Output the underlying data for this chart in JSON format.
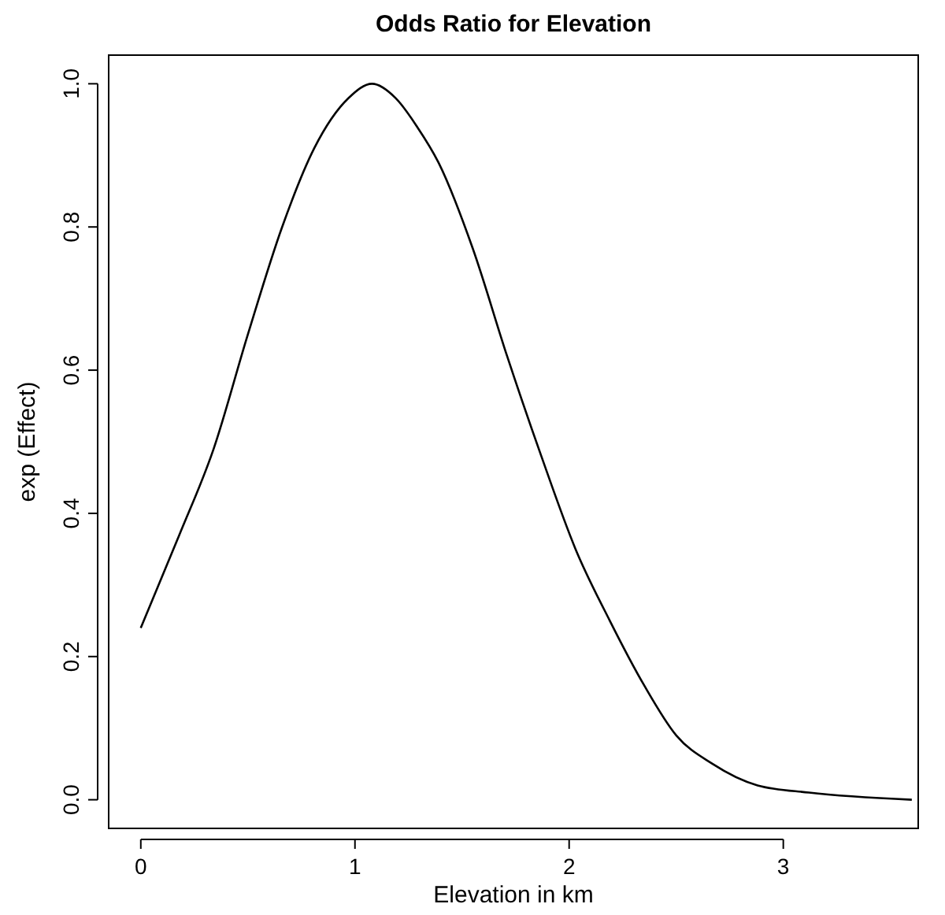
{
  "chart_data": {
    "type": "line",
    "title": "Odds Ratio for Elevation",
    "xlabel": "Elevation in km",
    "ylabel": "exp (Effect)",
    "xlim": [
      -0.15,
      3.63
    ],
    "ylim": [
      -0.04,
      1.04
    ],
    "xticks": [
      0,
      1,
      2,
      3
    ],
    "yticks": [
      {
        "value": 0,
        "label": "0.0"
      },
      {
        "value": 0.2,
        "label": "0.2"
      },
      {
        "value": 0.4,
        "label": "0.4"
      },
      {
        "value": 0.6,
        "label": "0.6"
      },
      {
        "value": 0.8,
        "label": "0.8"
      },
      {
        "value": 1,
        "label": "1.0"
      }
    ],
    "grid": false,
    "marker": "none",
    "line_style": "solid",
    "series": [
      {
        "color": "#000000",
        "x": [
          0,
          0.18,
          0.34,
          0.5,
          0.66,
          0.81,
          0.97,
          1.08,
          1.19,
          1.29,
          1.39,
          1.55,
          1.71,
          1.87,
          2.03,
          2.19,
          2.35,
          2.5,
          2.67,
          2.88,
          3.12,
          3.6
        ],
        "values": [
          0.24,
          0.37,
          0.49,
          0.65,
          0.8,
          0.91,
          0.98,
          1.0,
          0.98,
          0.94,
          0.89,
          0.77,
          0.62,
          0.48,
          0.35,
          0.25,
          0.16,
          0.09,
          0.05,
          0.02,
          0.01,
          0.0
        ]
      }
    ]
  }
}
